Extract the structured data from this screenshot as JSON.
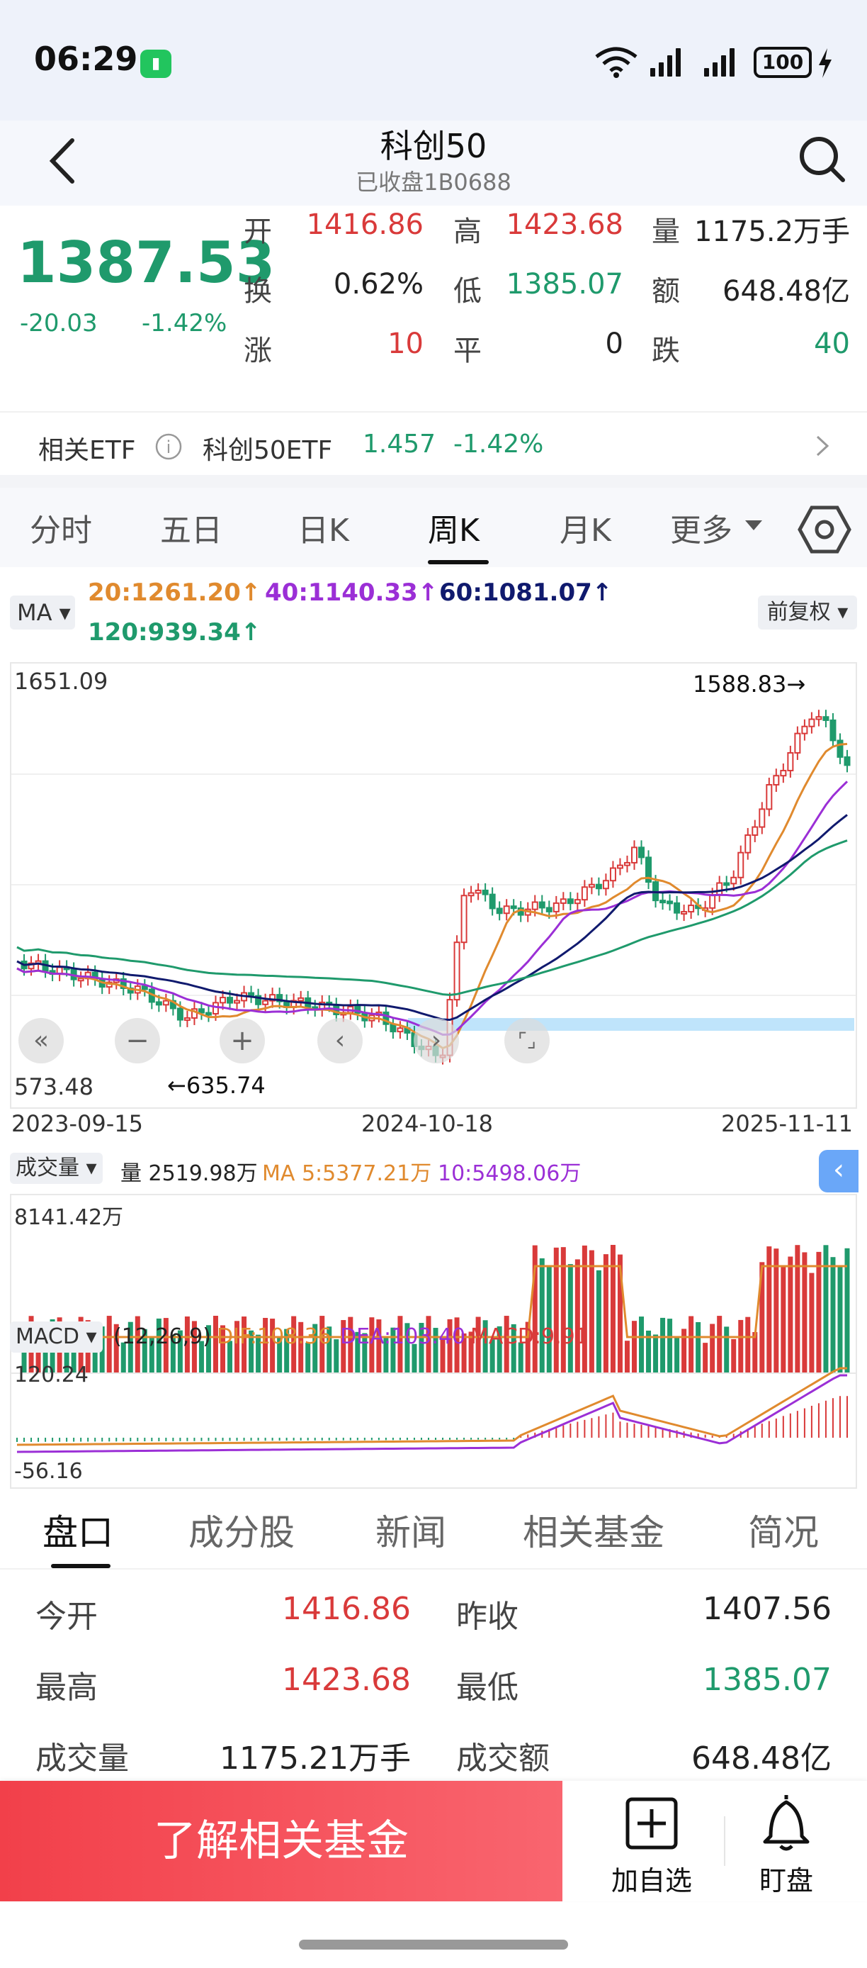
{
  "status_bar": {
    "time": "06:29",
    "battery": "100"
  },
  "header": {
    "title": "科创50",
    "subtitle": "已收盘1B0688"
  },
  "quote": {
    "price": "1387.53",
    "change": "-20.03",
    "change_pct": "-1.42%",
    "rows": [
      [
        {
          "label": "开",
          "value": "1416.86",
          "color": "red"
        },
        {
          "label": "高",
          "value": "1423.68",
          "color": "red"
        },
        {
          "label": "量",
          "value": "1175.2万手",
          "color": "dark"
        }
      ],
      [
        {
          "label": "换",
          "value": "0.62%",
          "color": "dark"
        },
        {
          "label": "低",
          "value": "1385.07",
          "color": "green"
        },
        {
          "label": "额",
          "value": "648.48亿",
          "color": "dark"
        }
      ],
      [
        {
          "label": "涨",
          "value": "10",
          "color": "red"
        },
        {
          "label": "平",
          "value": "0",
          "color": "dark"
        },
        {
          "label": "跌",
          "value": "40",
          "color": "green"
        }
      ]
    ]
  },
  "etf": {
    "label": "相关ETF",
    "name": "科创50ETF",
    "price": "1.457",
    "change_pct": "-1.42%"
  },
  "period_tabs": [
    "分时",
    "五日",
    "日K",
    "周K",
    "月K",
    "更多"
  ],
  "ma_legend": {
    "button": "MA",
    "ma20": "20:1261.20↑",
    "ma40": "40:1140.33↑",
    "ma60": "60:1081.07↑",
    "ma120": "120:939.34↑",
    "adjust": "前复权"
  },
  "kline": {
    "y_max_label": "1651.09",
    "y_min_label": "573.48",
    "high_mark": "1588.83→",
    "low_mark": "←635.74",
    "x_labels": [
      "2023-09-15",
      "2024-10-18",
      "2025-11-11"
    ]
  },
  "volume": {
    "button": "成交量",
    "vol": "量 2519.98万",
    "ma5": "MA 5:5377.21万",
    "ma10": "10:5498.06万",
    "y_max_label": "8141.42万"
  },
  "macd": {
    "button": "MACD",
    "params": "(12,26,9)",
    "dif": "DIF:108.36",
    "dea": "DEA:103.40",
    "macd": "MACD:9.91",
    "y_max_label": "120.24",
    "y_min_label": "-56.16"
  },
  "bottom_tabs": [
    "盘口",
    "成分股",
    "新闻",
    "相关基金",
    "简况"
  ],
  "stats": [
    [
      {
        "label": "今开",
        "value": "1416.86",
        "color": "red"
      },
      {
        "label": "昨收",
        "value": "1407.56",
        "color": "dark"
      }
    ],
    [
      {
        "label": "最高",
        "value": "1423.68",
        "color": "red"
      },
      {
        "label": "最低",
        "value": "1385.07",
        "color": "green"
      }
    ],
    [
      {
        "label": "成交量",
        "value": "1175.21万手",
        "color": "dark"
      },
      {
        "label": "成交额",
        "value": "648.48亿",
        "color": "dark"
      }
    ]
  ],
  "bottom_bar": {
    "cta": "了解相关基金",
    "add_watch": "加自选",
    "monitor": "盯盘"
  },
  "colors": {
    "up": "#d93a3a",
    "down": "#1f9a6c",
    "ma20": "#e08a2e",
    "ma40": "#9b2fd6",
    "ma60": "#101a6e",
    "ma120": "#1f9a6c"
  }
}
